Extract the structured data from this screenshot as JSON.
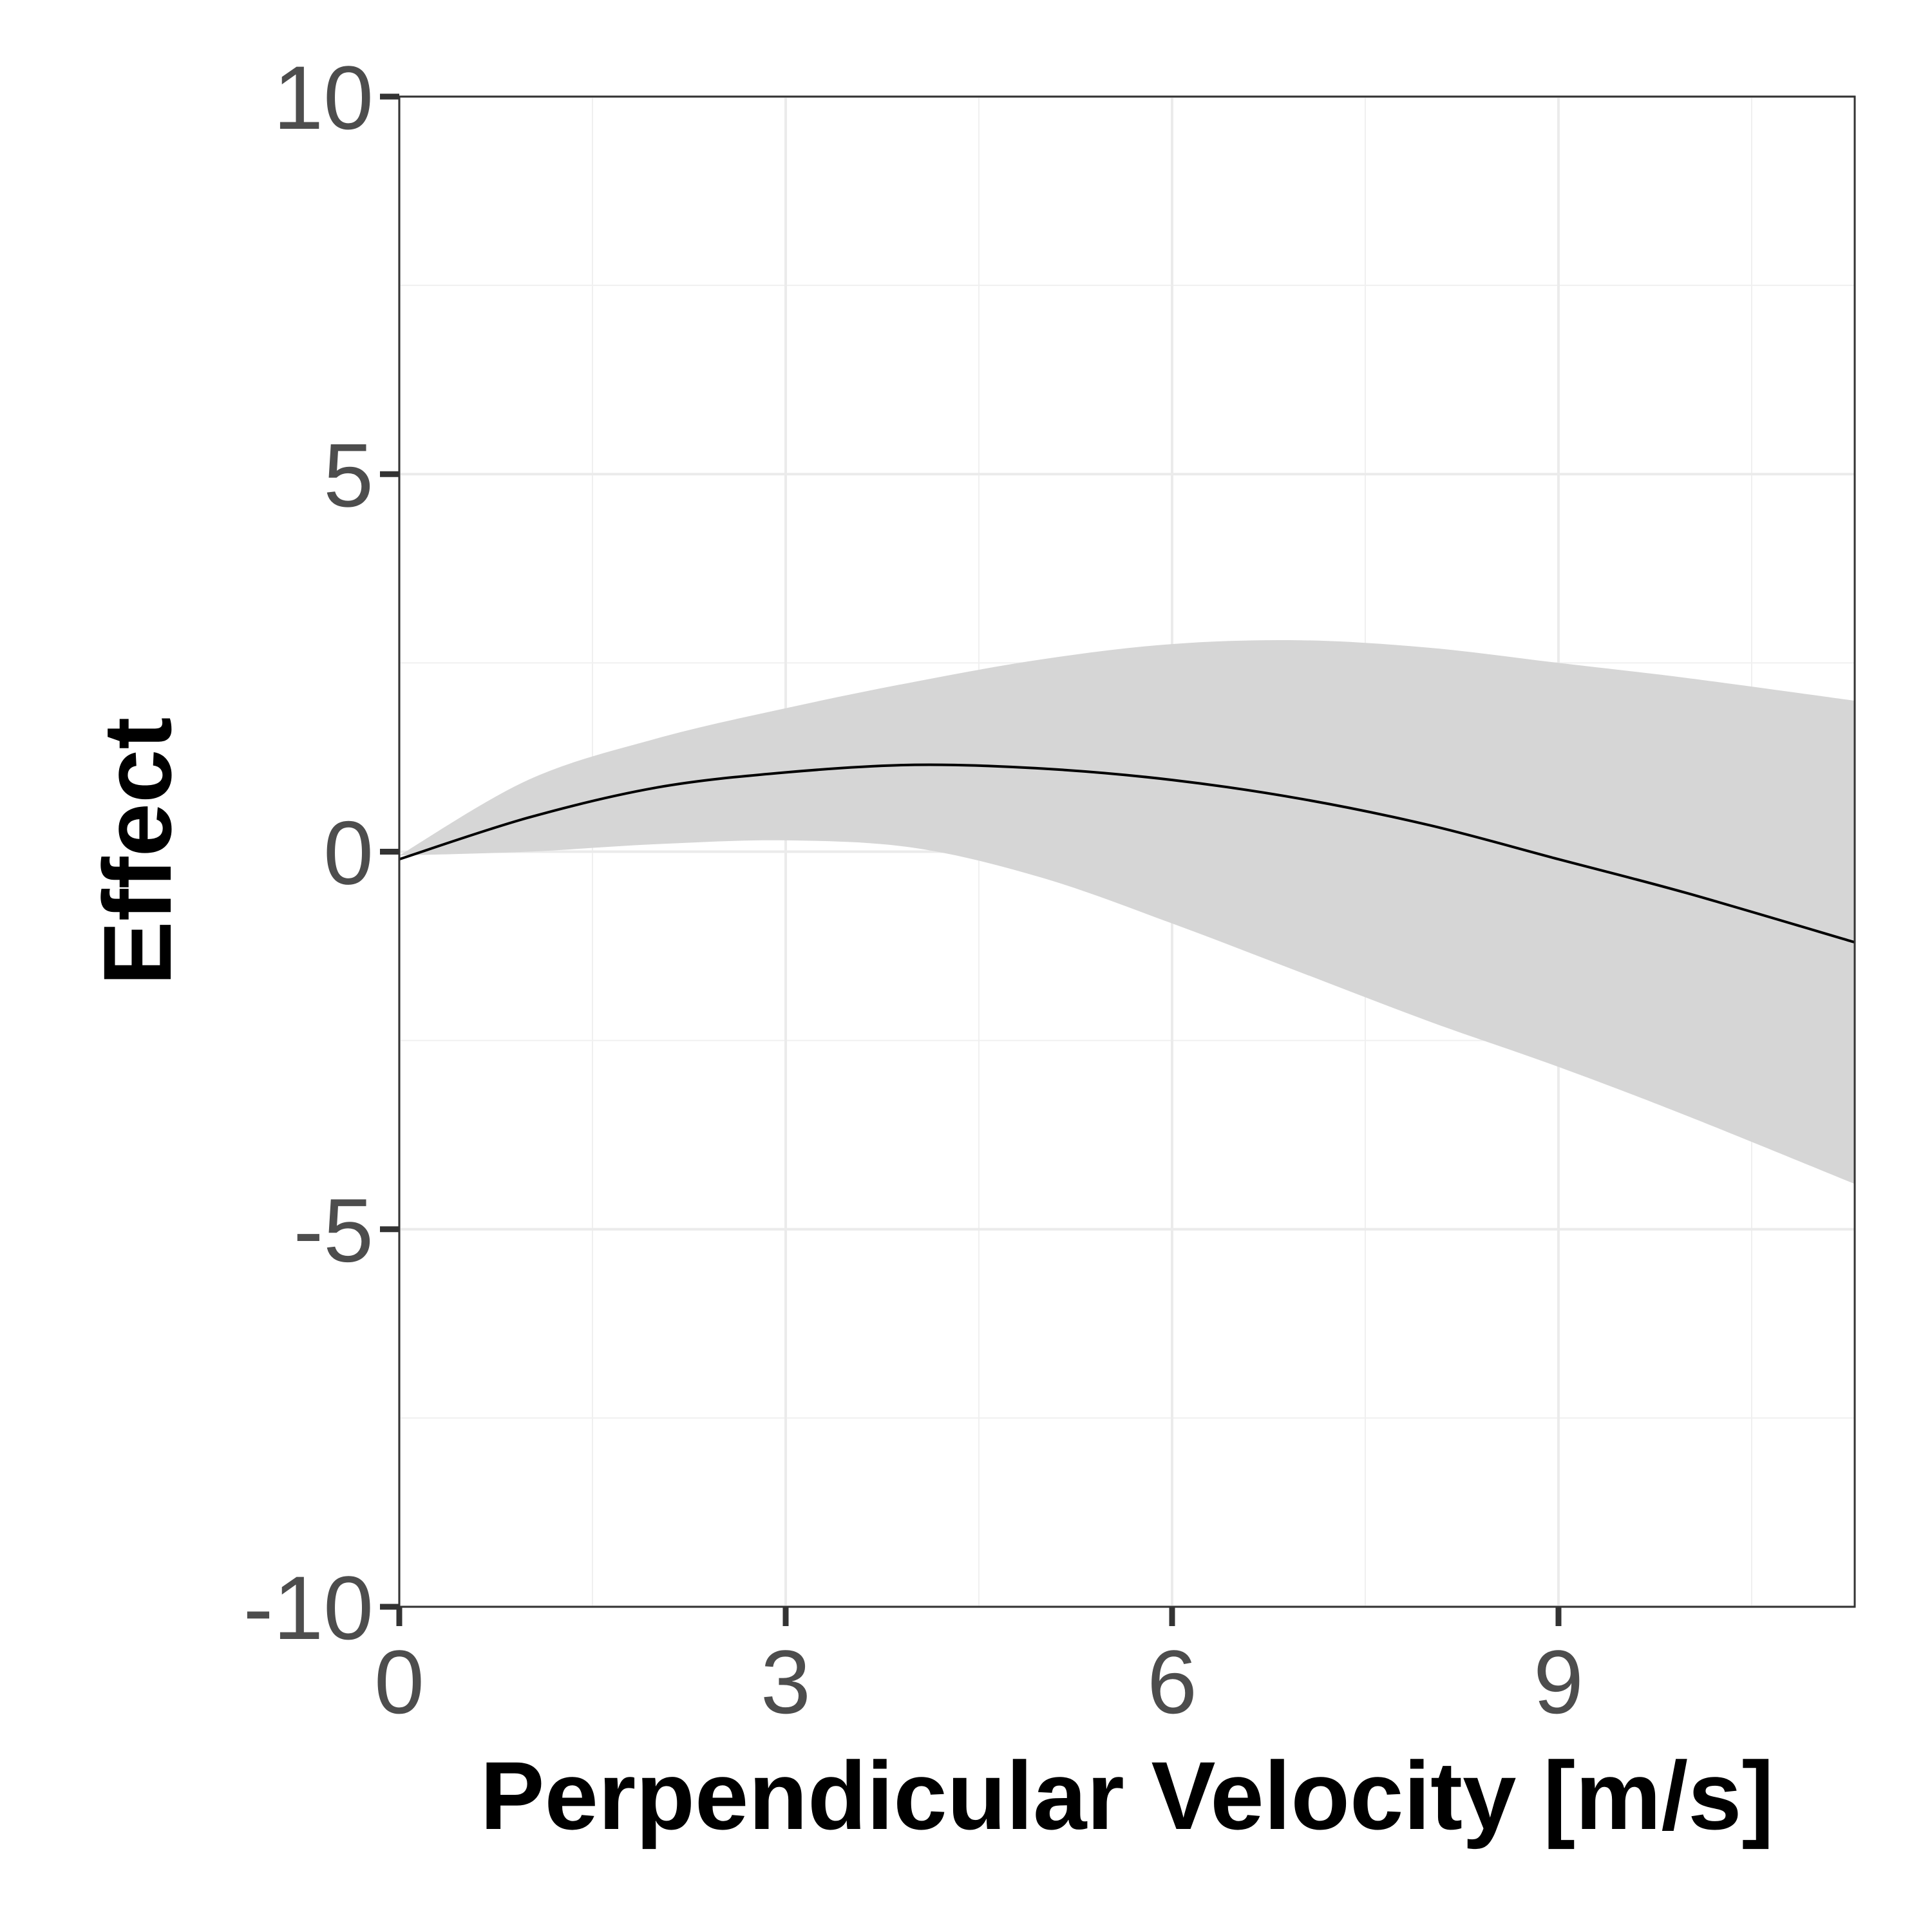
{
  "chart_data": {
    "type": "line",
    "title": "",
    "xlabel": "Perpendicular Velocity [m/s]",
    "ylabel": "Effect",
    "xlim": [
      0,
      11.3
    ],
    "ylim": [
      -10,
      10
    ],
    "x_ticks": [
      0,
      3,
      6,
      9
    ],
    "x_tick_labels": [
      "0",
      "3",
      "6",
      "9"
    ],
    "y_ticks": [
      -10,
      -5,
      0,
      5,
      10
    ],
    "y_tick_labels": [
      "-10",
      "-5",
      "0",
      "5",
      "10"
    ],
    "x_minor_gridlines": [
      1.5,
      4.5,
      7.5,
      10.5
    ],
    "y_minor_gridlines": [
      -7.5,
      -2.5,
      2.5,
      7.5
    ],
    "grid": true,
    "legend": "none",
    "series": [
      {
        "x": [
          0,
          1,
          2,
          3,
          4,
          5,
          6,
          7,
          8,
          9,
          10,
          11.3
        ],
        "values": [
          -0.1,
          0.45,
          0.85,
          1.05,
          1.15,
          1.1,
          0.95,
          0.7,
          0.35,
          -0.1,
          -0.55,
          -1.2
        ],
        "lower": [
          -0.05,
          0.0,
          0.1,
          0.15,
          0.05,
          -0.35,
          -0.95,
          -1.6,
          -2.25,
          -2.85,
          -3.5,
          -4.4
        ],
        "upper": [
          -0.05,
          0.95,
          1.5,
          1.9,
          2.25,
          2.55,
          2.75,
          2.8,
          2.7,
          2.5,
          2.3,
          2.0
        ],
        "line_color": "#000000",
        "band_color": "#d6d6d6"
      }
    ]
  }
}
